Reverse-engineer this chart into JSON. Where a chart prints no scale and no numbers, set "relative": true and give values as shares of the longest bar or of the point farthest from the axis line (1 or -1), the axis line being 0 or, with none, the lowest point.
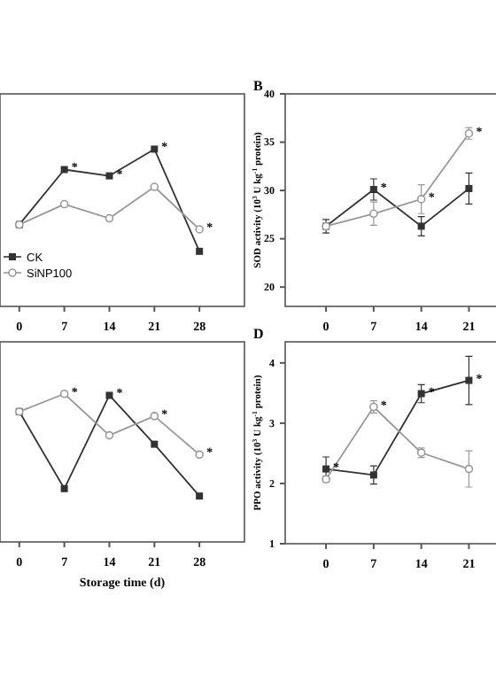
{
  "chart_data": [
    {
      "type": "line",
      "relative": true,
      "x": [
        0,
        7,
        14,
        21,
        28
      ],
      "xlim": [
        -3,
        35
      ],
      "xticks": [
        0,
        7,
        14,
        21,
        28
      ],
      "tick_labels": "x",
      "legend": "bottom left",
      "grid": false,
      "series": [
        {
          "name": "CK",
          "color": "#333333",
          "marker": "square",
          "values": [
            0.52,
            0.87,
            0.83,
            1,
            0.35
          ]
        },
        {
          "name": "SiNP100",
          "color": "#999999",
          "marker": "circle",
          "values": [
            0.52,
            0.65,
            0.56,
            0.76,
            0.49
          ]
        }
      ],
      "annotations": [
        {
          "text": "*",
          "x": 7,
          "y": 0.87
        },
        {
          "text": "*",
          "x": 14,
          "y": 0.83
        },
        {
          "text": "*",
          "x": 21,
          "y": 1
        },
        {
          "text": "*",
          "x": 28,
          "y": 0.49
        }
      ]
    },
    {
      "type": "line",
      "title": "B",
      "ylabel": "SOD activity (10$^{3}$ U kg$^{-1}$ protein)",
      "x": [
        0,
        7,
        14,
        21
      ],
      "xlim": [
        -6,
        25.5
      ],
      "xticks": [
        0,
        7,
        14,
        21
      ],
      "ylim": [
        18,
        40
      ],
      "yticks": [
        20,
        25,
        30,
        35,
        40
      ],
      "grid": false,
      "series": [
        {
          "color": "#333333",
          "marker": "square",
          "values": [
            26.3,
            30.1,
            26.3,
            30.2
          ],
          "errors": [
            0.7,
            1.1,
            1.0,
            1.6
          ]
        },
        {
          "color": "#999999",
          "marker": "circle",
          "values": [
            26.3,
            27.6,
            29.1,
            35.9
          ],
          "errors": [
            null,
            1.2,
            1.5,
            0.6
          ]
        }
      ],
      "annotations": [
        {
          "text": "*",
          "x": 7,
          "y": 30.1
        },
        {
          "text": "*",
          "x": 14,
          "y": 29.1
        },
        {
          "text": "*",
          "x": 21,
          "y": 35.9
        }
      ]
    },
    {
      "type": "line",
      "relative": true,
      "xlabel": "Storage time (d)",
      "x": [
        0,
        7,
        14,
        21,
        28
      ],
      "xlim": [
        -3,
        35
      ],
      "xticks": [
        0,
        7,
        14,
        21,
        28
      ],
      "tick_labels": "x",
      "grid": false,
      "series": [
        {
          "color": "#333333",
          "marker": "square",
          "values": [
            0.88,
            0.36,
            0.99,
            0.66,
            0.31
          ]
        },
        {
          "color": "#999999",
          "marker": "circle",
          "values": [
            0.88,
            1,
            0.72,
            0.85,
            0.59
          ]
        }
      ],
      "annotations": [
        {
          "text": "*",
          "x": 7,
          "y": 1
        },
        {
          "text": "*",
          "x": 14,
          "y": 0.99
        },
        {
          "text": "*",
          "x": 21,
          "y": 0.85
        },
        {
          "text": "*",
          "x": 28,
          "y": 0.59
        }
      ]
    },
    {
      "type": "line",
      "title": "D",
      "ylabel": "PPO activity (10$^{3}$ U kg$^{-1}$ protein)",
      "x": [
        0,
        7,
        14,
        21
      ],
      "xlim": [
        -6,
        25.5
      ],
      "xticks": [
        0,
        7,
        14,
        21
      ],
      "ylim": [
        1,
        4.35
      ],
      "yticks": [
        1,
        2,
        3,
        4
      ],
      "grid": false,
      "series": [
        {
          "color": "#333333",
          "marker": "square",
          "values": [
            2.24,
            2.14,
            3.49,
            3.71
          ],
          "errors": [
            0.2,
            0.15,
            0.15,
            0.4
          ]
        },
        {
          "color": "#999999",
          "marker": "circle",
          "values": [
            2.07,
            3.27,
            2.51,
            2.24
          ],
          "errors": [
            0.05,
            0.1,
            0.08,
            0.3
          ]
        }
      ],
      "annotations": [
        {
          "text": "*",
          "x": 0,
          "y": 2.24
        },
        {
          "text": "*",
          "x": 7,
          "y": 3.27
        },
        {
          "text": "*",
          "x": 14,
          "y": 3.49
        },
        {
          "text": "*",
          "x": 21,
          "y": 3.71
        }
      ]
    }
  ]
}
